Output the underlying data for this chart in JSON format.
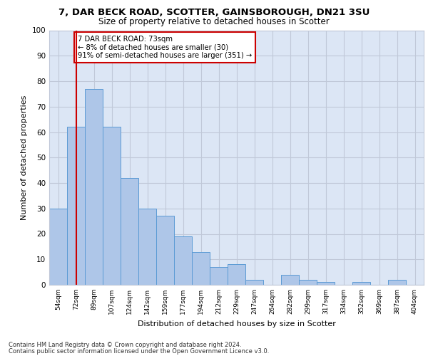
{
  "title_line1": "7, DAR BECK ROAD, SCOTTER, GAINSBOROUGH, DN21 3SU",
  "title_line2": "Size of property relative to detached houses in Scotter",
  "xlabel": "Distribution of detached houses by size in Scotter",
  "ylabel": "Number of detached properties",
  "footer_line1": "Contains HM Land Registry data © Crown copyright and database right 2024.",
  "footer_line2": "Contains public sector information licensed under the Open Government Licence v3.0.",
  "annotation_line1": "7 DAR BECK ROAD: 73sqm",
  "annotation_line2": "← 8% of detached houses are smaller (30)",
  "annotation_line3": "91% of semi-detached houses are larger (351) →",
  "bar_labels": [
    "54sqm",
    "72sqm",
    "89sqm",
    "107sqm",
    "124sqm",
    "142sqm",
    "159sqm",
    "177sqm",
    "194sqm",
    "212sqm",
    "229sqm",
    "247sqm",
    "264sqm",
    "282sqm",
    "299sqm",
    "317sqm",
    "334sqm",
    "352sqm",
    "369sqm",
    "387sqm",
    "404sqm"
  ],
  "bar_values": [
    30,
    62,
    77,
    62,
    42,
    30,
    27,
    19,
    13,
    7,
    8,
    2,
    0,
    4,
    2,
    1,
    0,
    1,
    0,
    2,
    0
  ],
  "bar_color": "#aec6e8",
  "bar_edge_color": "#5b9bd5",
  "grid_color": "#c0c8d8",
  "background_color": "#dce6f5",
  "annotation_box_edge_color": "#cc0000",
  "property_line_color": "#cc0000",
  "ylim": [
    0,
    100
  ],
  "yticks": [
    0,
    10,
    20,
    30,
    40,
    50,
    60,
    70,
    80,
    90,
    100
  ]
}
